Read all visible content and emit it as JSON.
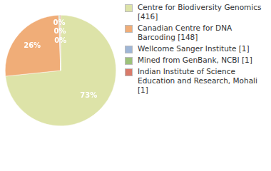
{
  "chart_data": {
    "type": "pie",
    "categories": [
      "Centre for Biodiversity Genomics [416]",
      "Canadian Centre for DNA Barcoding [148]",
      "Wellcome Sanger Institute [1]",
      "Mined from GenBank, NCBI [1]",
      "Indian Institute of Science Education and Research, Mohali [1]"
    ],
    "values": [
      73.4,
      26.1,
      0.18,
      0.18,
      0.18
    ],
    "value_labels": [
      "73%",
      "26%",
      "0%",
      "0%",
      "0%"
    ],
    "colors": [
      "#dde3a8",
      "#f0ad78",
      "#9fb6d6",
      "#9dc27a",
      "#d97a6a"
    ],
    "data_labels": true,
    "legend": "right"
  }
}
